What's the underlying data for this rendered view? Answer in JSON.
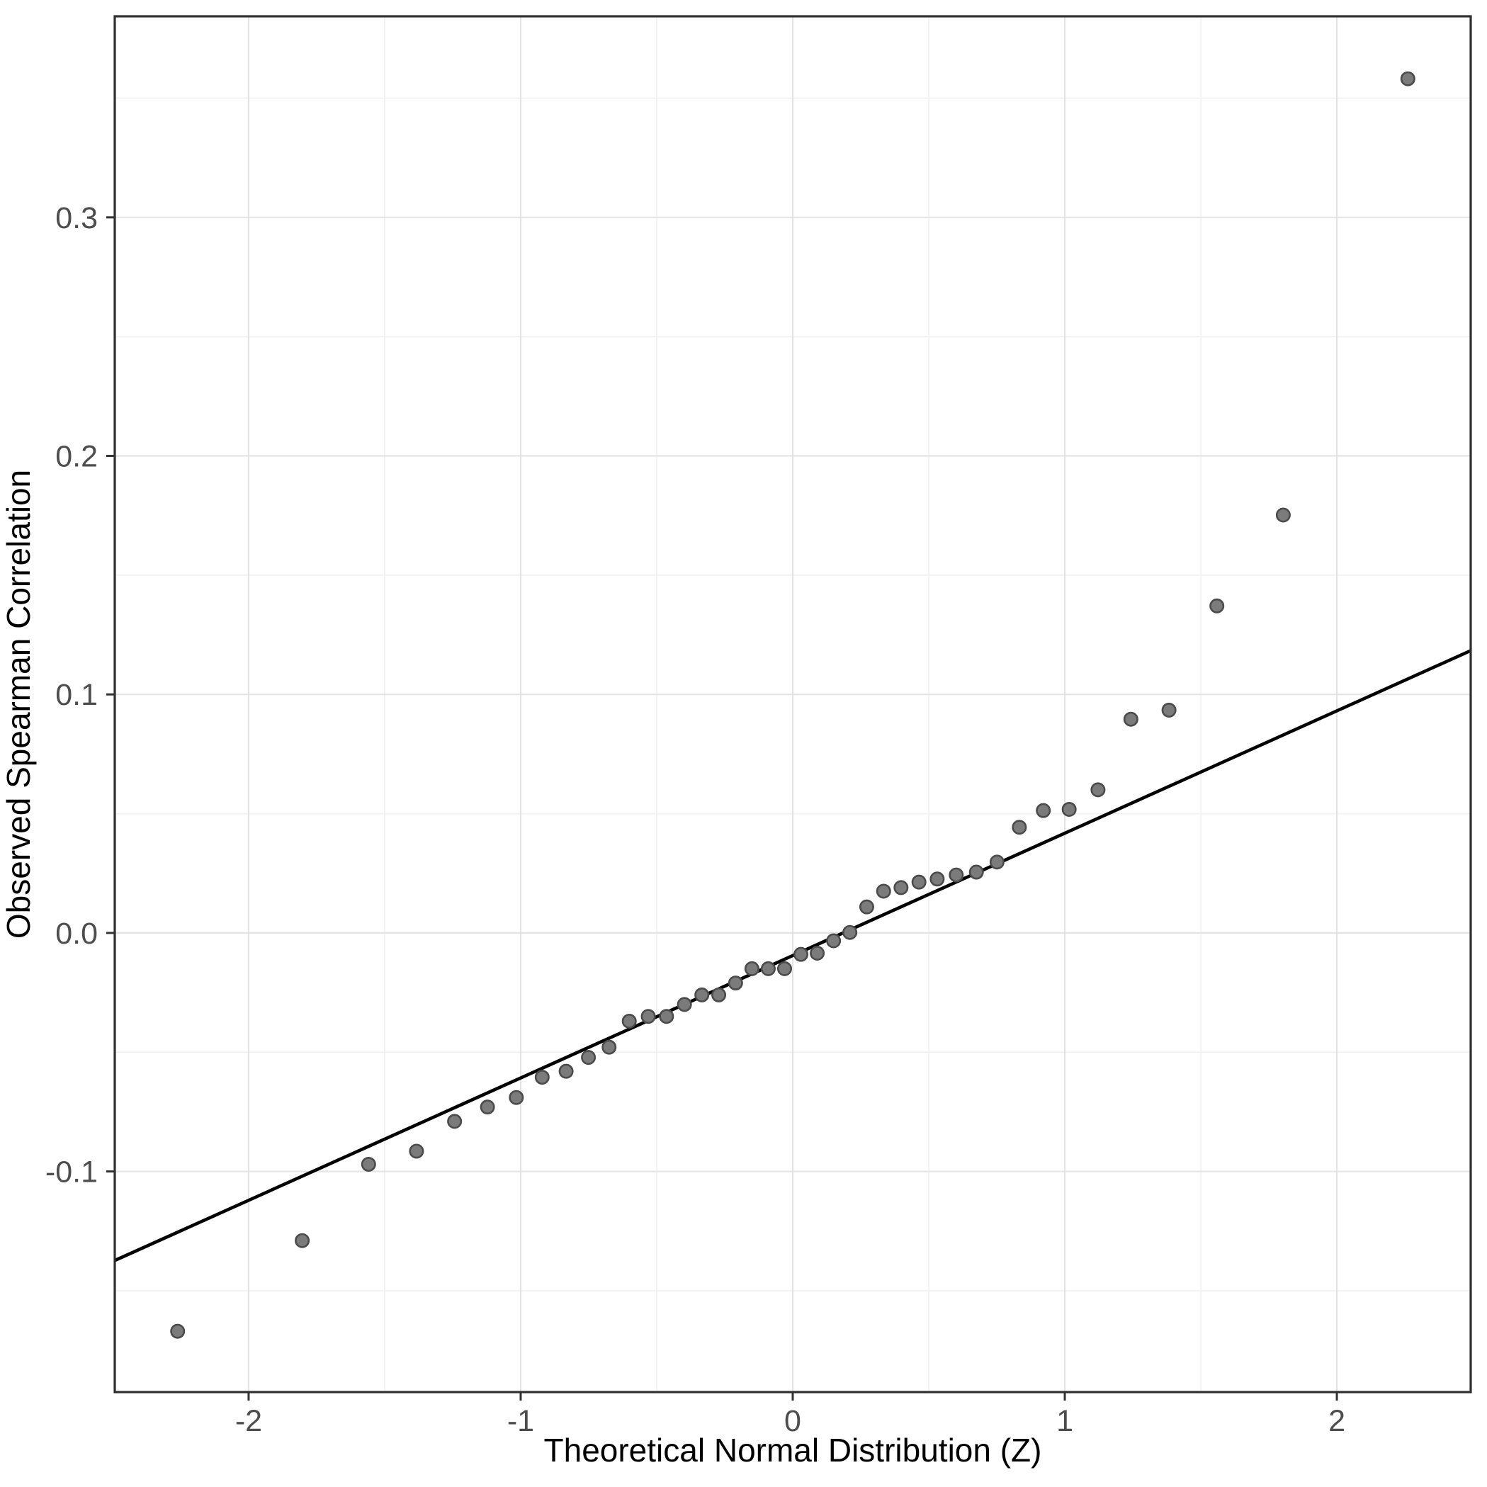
{
  "chart_data": {
    "type": "scatter",
    "title": "",
    "xlabel": "Theoretical Normal Distribution (Z)",
    "ylabel": "Observed Spearman Correlation",
    "xlim": [
      -2.492,
      2.492
    ],
    "ylim": [
      -0.1925,
      0.3843
    ],
    "x_major_ticks": [
      -2,
      -1,
      0,
      1,
      2
    ],
    "x_tick_labels": [
      "-2",
      "-1",
      "0",
      "1",
      "2"
    ],
    "x_minor_ticks": [
      -1.5,
      -0.5,
      0.5,
      1.5
    ],
    "y_major_ticks": [
      -0.1,
      0.0,
      0.1,
      0.2,
      0.3
    ],
    "y_tick_labels": [
      "-0.1",
      "0.0",
      "0.1",
      "0.2",
      "0.3"
    ],
    "y_minor_ticks": [
      -0.15,
      -0.05,
      0.05,
      0.15,
      0.25,
      0.35
    ],
    "grid": "major+minor",
    "legend": "none",
    "n_points": 42,
    "points": [
      [
        -2.261,
        -0.167
      ],
      [
        -1.803,
        -0.129
      ],
      [
        -1.559,
        -0.097
      ],
      [
        -1.383,
        -0.0915
      ],
      [
        -1.243,
        -0.079
      ],
      [
        -1.122,
        -0.073
      ],
      [
        -1.016,
        -0.069
      ],
      [
        -0.921,
        -0.0605
      ],
      [
        -0.833,
        -0.058
      ],
      [
        -0.751,
        -0.0522
      ],
      [
        -0.675,
        -0.0479
      ],
      [
        -0.601,
        -0.037
      ],
      [
        -0.531,
        -0.035
      ],
      [
        -0.464,
        -0.035
      ],
      [
        -0.398,
        -0.03
      ],
      [
        -0.334,
        -0.026
      ],
      [
        -0.272,
        -0.026
      ],
      [
        -0.21,
        -0.021
      ],
      [
        -0.15,
        -0.015
      ],
      [
        -0.09,
        -0.015
      ],
      [
        -0.03,
        -0.015
      ],
      [
        0.03,
        -0.009
      ],
      [
        0.09,
        -0.0085
      ],
      [
        0.15,
        -0.0033
      ],
      [
        0.21,
        0.0002
      ],
      [
        0.272,
        0.0109
      ],
      [
        0.334,
        0.0175
      ],
      [
        0.398,
        0.019
      ],
      [
        0.464,
        0.0213
      ],
      [
        0.531,
        0.0226
      ],
      [
        0.601,
        0.0243
      ],
      [
        0.675,
        0.0255
      ],
      [
        0.751,
        0.0297
      ],
      [
        0.833,
        0.0443
      ],
      [
        0.921,
        0.0513
      ],
      [
        1.016,
        0.0518
      ],
      [
        1.122,
        0.06
      ],
      [
        1.243,
        0.0896
      ],
      [
        1.383,
        0.0934
      ],
      [
        1.559,
        0.1371
      ],
      [
        1.803,
        0.1752
      ],
      [
        2.261,
        0.3581
      ]
    ],
    "reference_line": {
      "slope": 0.0513,
      "intercept": -0.0095,
      "x_start": -2.492,
      "x_end": 2.492
    },
    "colors": {
      "background": "#ffffff",
      "panel_background": "#ffffff",
      "panel_border": "#2f2f2f",
      "grid_major": "#e4e4e4",
      "grid_minor": "#f0f0f0",
      "point_fill": "#7b7b7b",
      "point_stroke": "#4b4b4b",
      "reference_line": "#000000",
      "tick_mark": "#333333",
      "tick_label": "#4d4d4d",
      "axis_title": "#000000"
    }
  }
}
